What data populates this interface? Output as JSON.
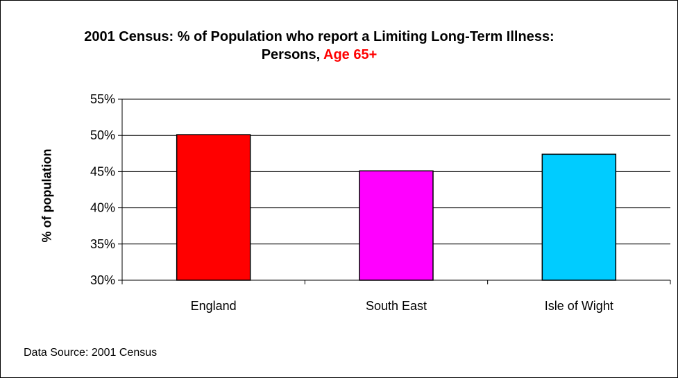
{
  "chart_data": {
    "type": "bar",
    "title": "2001 Census: % of Population who report a Limiting Long-Term Illness: Persons,",
    "title_highlight": "Age 65+",
    "ylabel": "% of population",
    "xlabel": "",
    "categories": [
      "England",
      "South East",
      "Isle of Wight"
    ],
    "values": [
      50.1,
      45.1,
      47.4
    ],
    "colors": [
      "#ff0000",
      "#ff00ff",
      "#00ccff"
    ],
    "ylim": [
      30,
      55
    ],
    "yticks": [
      30,
      35,
      40,
      45,
      50,
      55
    ],
    "ytick_labels": [
      "30%",
      "35%",
      "40%",
      "45%",
      "50%",
      "55%"
    ],
    "grid": true,
    "legend": "none"
  },
  "source_note": "Data Source: 2001 Census"
}
